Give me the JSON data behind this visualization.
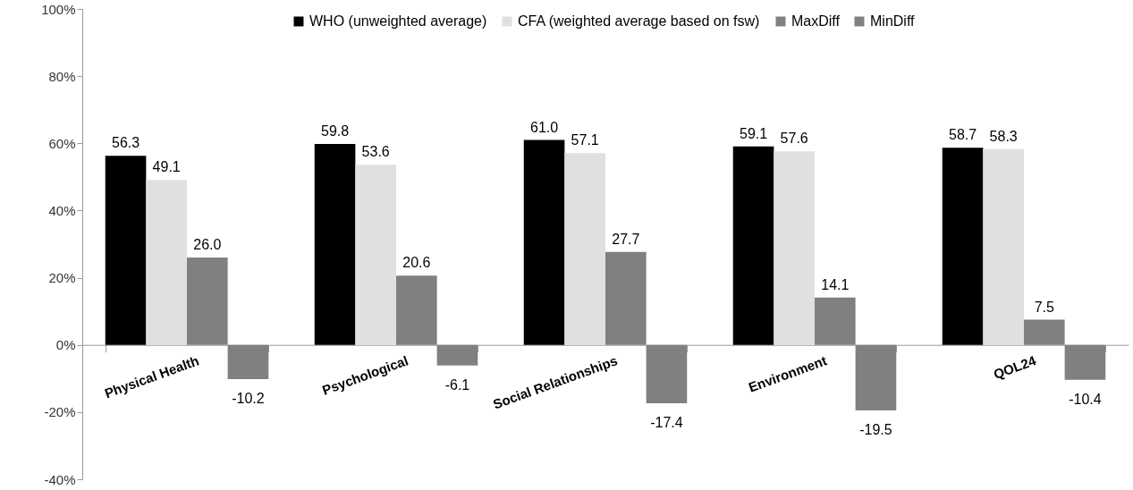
{
  "chart_data": {
    "type": "bar",
    "categories": [
      "Physical Health",
      "Psychological",
      "Social Relationships",
      "Environment",
      "QOL24"
    ],
    "series": [
      {
        "name": "WHO (unweighted average)",
        "color": "#000000",
        "values": [
          56.3,
          59.8,
          61.0,
          59.1,
          58.7
        ],
        "value_labels": [
          "56.3",
          "59.8",
          "61.0",
          "59.1",
          "58.7"
        ]
      },
      {
        "name": "CFA (weighted average based on fsw)",
        "color": "#e0e0e0",
        "values": [
          49.1,
          53.6,
          57.1,
          57.6,
          58.3
        ],
        "value_labels": [
          "49.1",
          "53.6",
          "57.1",
          "57.6",
          "58.3"
        ]
      },
      {
        "name": "MaxDiff",
        "color": "#808080",
        "values": [
          26.0,
          20.6,
          27.7,
          14.1,
          7.5
        ],
        "value_labels": [
          "26.0",
          "20.6",
          "27.7",
          "14.1",
          "7.5"
        ]
      },
      {
        "name": "MinDiff",
        "color": "#808080",
        "values": [
          -10.2,
          -6.1,
          -17.4,
          -19.5,
          -10.4
        ],
        "value_labels": [
          "-10.2",
          "-6.1",
          "-17.4",
          "-19.5",
          "-10.4"
        ]
      }
    ],
    "ylim": [
      -40,
      100
    ],
    "yticks": [
      {
        "value": -40,
        "label": "-40%"
      },
      {
        "value": -20,
        "label": "-20%"
      },
      {
        "value": 0,
        "label": "0%"
      },
      {
        "value": 20,
        "label": "20%"
      },
      {
        "value": 40,
        "label": "40%"
      },
      {
        "value": 60,
        "label": "60%"
      },
      {
        "value": 80,
        "label": "80%"
      },
      {
        "value": 100,
        "label": "100%"
      }
    ],
    "grid": false,
    "legend": "top"
  }
}
